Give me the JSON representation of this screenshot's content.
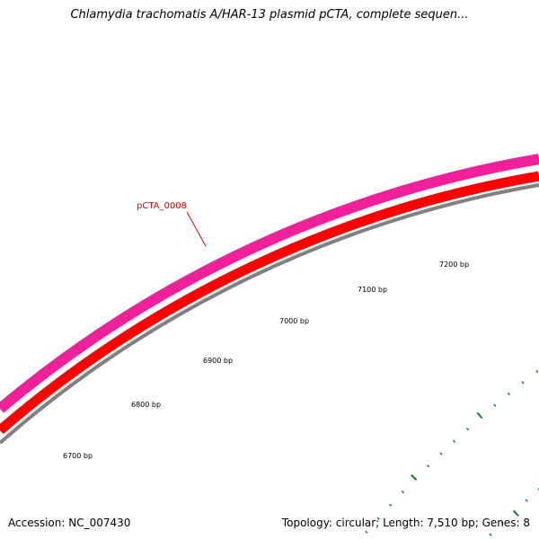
{
  "title": "Chlamydia trachomatis A/HAR-13 plasmid pCTA, complete sequen...",
  "accession": "Accession: NC_007430",
  "summary": "Topology: circular; Length: 7,510 bp; Genes: 8",
  "gene_label": "pCTA_0008",
  "colors": {
    "gene_track": "#f0209a",
    "cds_track": "#ff0000",
    "backbone": "#808080",
    "ticks": "#1a7a1a",
    "gene_label": "#e00000"
  },
  "scale_labels": [
    "6700 bp",
    "6800 bp",
    "6900 bp",
    "7000 bp",
    "7100 bp",
    "7200 bp"
  ]
}
